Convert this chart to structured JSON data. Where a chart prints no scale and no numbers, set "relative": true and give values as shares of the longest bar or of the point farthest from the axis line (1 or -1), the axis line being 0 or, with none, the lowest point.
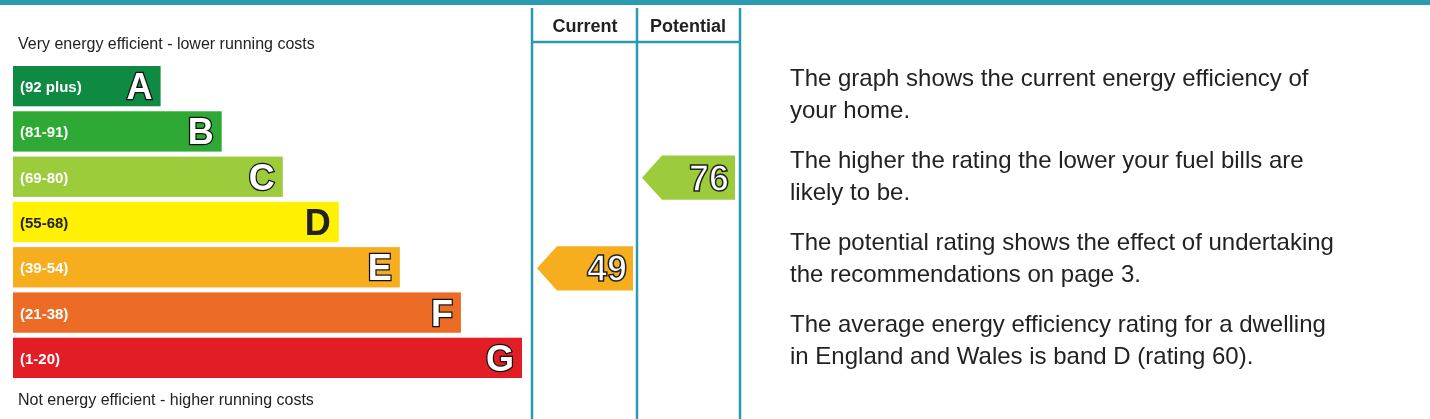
{
  "chart_data": {
    "type": "bar",
    "orientation": "horizontal",
    "relative": true,
    "title": "Very energy efficient - lower running costs",
    "categories": [
      "A",
      "B",
      "C",
      "D",
      "E",
      "F",
      "G"
    ],
    "values": [
      0.29,
      0.41,
      0.53,
      0.64,
      0.76,
      0.88,
      1.0
    ],
    "colors": [
      "#0f8a43",
      "#2ea935",
      "#9ccb3c",
      "#fff100",
      "#f6ae1f",
      "#ec6b25",
      "#e31d25"
    ],
    "annotations": [
      "Not energy efficient - higher running costs",
      "Current",
      "Potential",
      "49",
      "76",
      "The graph shows the current energy efficiency of your home.",
      "The higher the rating the lower your fuel bills are likely to be.",
      "The potential rating shows the effect of undertaking the recommendations on page 3.",
      "The average energy efficiency rating for a dwelling in England and Wales is band D (rating 60).",
      "(92 plus)",
      "(81-91)",
      "(69-80)",
      "(55-68)",
      "(39-54)",
      "(21-38)",
      "(1-20)"
    ]
  }
}
